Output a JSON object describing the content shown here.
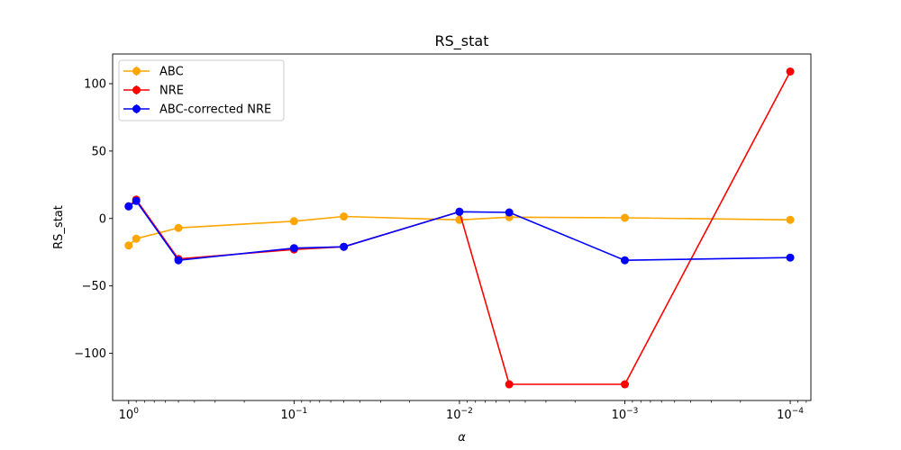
{
  "chart_data": {
    "type": "line",
    "title": "RS_stat",
    "xlabel": "α",
    "ylabel": "RS_stat",
    "xscale": "log",
    "xaxis_inverted": true,
    "xlim": [
      1.25,
      7.5e-05
    ],
    "ylim": [
      -135,
      122
    ],
    "xticks": [
      {
        "value": 1,
        "base": "10",
        "exp": "0"
      },
      {
        "value": 0.1,
        "base": "10",
        "exp": "−1"
      },
      {
        "value": 0.01,
        "base": "10",
        "exp": "−2"
      },
      {
        "value": 0.001,
        "base": "10",
        "exp": "−3"
      },
      {
        "value": 0.0001,
        "base": "10",
        "exp": "−4"
      }
    ],
    "yticks": [
      {
        "value": 100,
        "label": "100"
      },
      {
        "value": 50,
        "label": "50"
      },
      {
        "value": 0,
        "label": "0"
      },
      {
        "value": -50,
        "label": "−50"
      },
      {
        "value": -100,
        "label": "−100"
      }
    ],
    "legend_position": "top-left",
    "series": [
      {
        "name": "ABC",
        "color": "#ffa500",
        "points": [
          [
            1,
            -20
          ],
          [
            0.9,
            -15
          ],
          [
            0.5,
            -7
          ],
          [
            0.1,
            -2
          ],
          [
            0.05,
            1.5
          ],
          [
            0.01,
            -1
          ],
          [
            0.005,
            1
          ],
          [
            0.001,
            0.5
          ],
          [
            0.0001,
            -1
          ]
        ]
      },
      {
        "name": "NRE",
        "color": "#ff0000",
        "points": [
          [
            1,
            9
          ],
          [
            0.9,
            14
          ],
          [
            0.5,
            -30
          ],
          [
            0.1,
            -23
          ],
          [
            0.05,
            -21
          ],
          [
            0.01,
            5
          ],
          [
            0.005,
            -123
          ],
          [
            0.001,
            -123
          ],
          [
            0.0001,
            109
          ]
        ]
      },
      {
        "name": "ABC-corrected NRE",
        "color": "#0000ff",
        "points": [
          [
            1,
            9
          ],
          [
            0.9,
            13
          ],
          [
            0.5,
            -31
          ],
          [
            0.1,
            -22
          ],
          [
            0.05,
            -21
          ],
          [
            0.01,
            5
          ],
          [
            0.005,
            4.5
          ],
          [
            0.001,
            -31
          ],
          [
            0.0001,
            -29
          ]
        ]
      }
    ]
  }
}
